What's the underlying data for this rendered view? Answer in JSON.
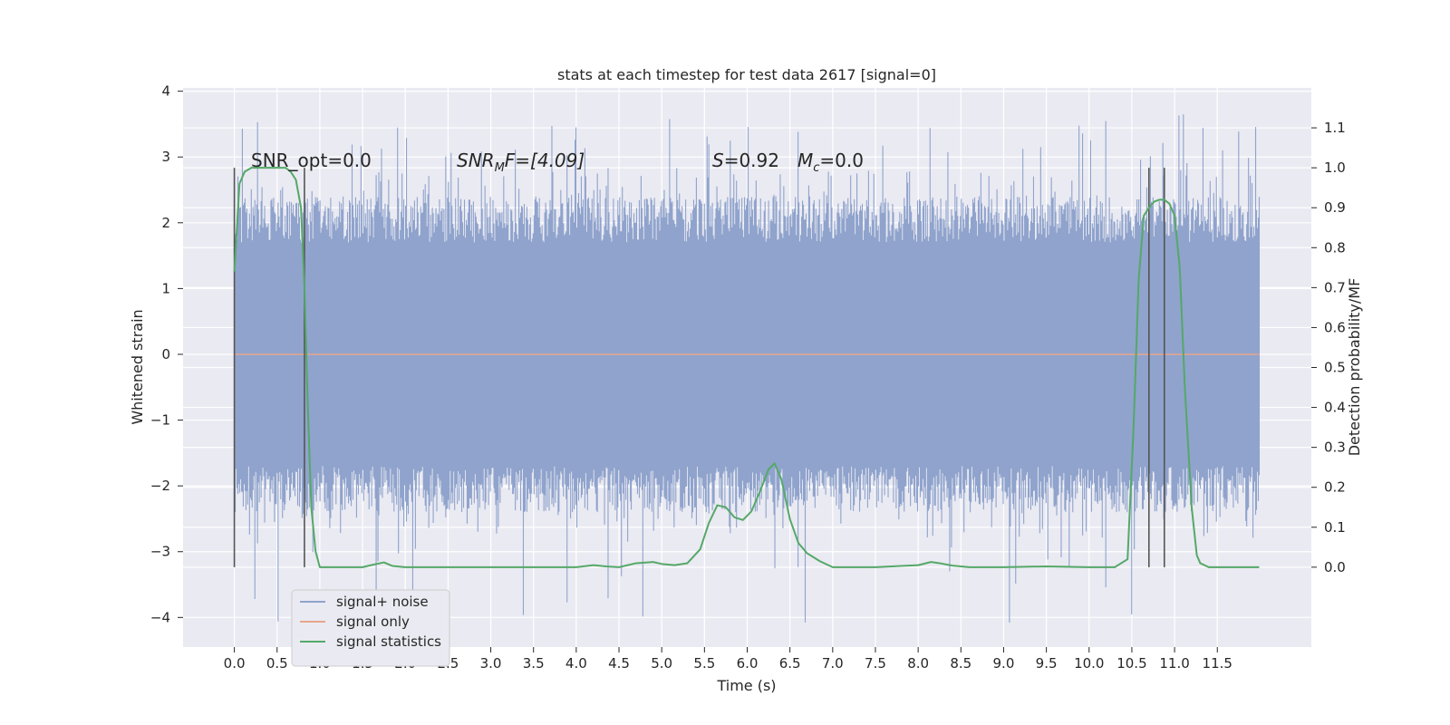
{
  "chart_data": {
    "type": "line",
    "title": "stats at each timestep for test data 2617 [signal=0]",
    "xlabel": "Time (s)",
    "ylabel_left": "Whitened strain",
    "ylabel_right": "Detection probability/MF",
    "xlim": [
      -0.6,
      12.6
    ],
    "ylim_left": [
      -4.45,
      4.05
    ],
    "ylim_right": [
      -0.2,
      1.2
    ],
    "x_ticks": [
      0.0,
      0.5,
      1.0,
      1.5,
      2.0,
      2.5,
      3.0,
      3.5,
      4.0,
      4.5,
      5.0,
      5.5,
      6.0,
      6.5,
      7.0,
      7.5,
      8.0,
      8.5,
      9.0,
      9.5,
      10.0,
      10.5,
      11.0,
      11.5
    ],
    "x_tick_labels": [
      "0.0",
      "0.5",
      "1.0",
      "1.5",
      "2.0",
      "2.5",
      "3.0",
      "3.5",
      "4.0",
      "4.5",
      "5.0",
      "5.5",
      "6.0",
      "6.5",
      "7.0",
      "7.5",
      "8.0",
      "8.5",
      "9.0",
      "9.5",
      "10.0",
      "10.5",
      "11.0",
      "11.5"
    ],
    "y_left_ticks": [
      4,
      3,
      2,
      1,
      0,
      -1,
      -2,
      -3,
      -4
    ],
    "y_left_tick_labels": [
      "4",
      "3",
      "2",
      "1",
      "0",
      "−1",
      "−2",
      "−3",
      "−4"
    ],
    "y_right_ticks": [
      1.1,
      1.0,
      0.9,
      0.8,
      0.7,
      0.6,
      0.5,
      0.4,
      0.3,
      0.2,
      0.1,
      0.0
    ],
    "y_right_tick_labels": [
      "1.1",
      "1.0",
      "0.9",
      "0.8",
      "0.7",
      "0.6",
      "0.5",
      "0.4",
      "0.3",
      "0.2",
      "0.1",
      "0.0"
    ],
    "grid": true,
    "legend_placement": "lower-left",
    "annotations": {
      "snr_opt": "SNR_opt=0.0",
      "snr_mf_main": "SNR",
      "snr_mf_sub": "M",
      "snr_mf_rest": "F=[4.09]",
      "s_main": "S",
      "s_rest": "=0.92",
      "mc_main": "M",
      "mc_sub": "c",
      "mc_rest": "=0.0"
    },
    "vertical_lines": [
      0.0,
      0.82,
      10.7,
      10.88
    ],
    "noise_envelope": {
      "x_range": [
        0.0,
        11.99
      ],
      "typical_upper": 2.0,
      "typical_lower": -2.0,
      "max": 3.65,
      "min": -4.1
    },
    "series": [
      {
        "name": "signal+ noise",
        "color": "#8fa3cc",
        "style": "dense noise band"
      },
      {
        "name": "signal only",
        "color": "#e8a58c",
        "x": [
          0.0,
          11.99
        ],
        "y": [
          0.0,
          0.0
        ]
      },
      {
        "name": "signal statistics",
        "color": "#55a868",
        "axis": "right",
        "x": [
          0.0,
          0.06,
          0.12,
          0.2,
          0.3,
          0.4,
          0.5,
          0.6,
          0.66,
          0.72,
          0.78,
          0.82,
          0.86,
          0.9,
          0.95,
          1.0,
          1.1,
          1.3,
          1.5,
          1.6,
          1.75,
          1.85,
          2.0,
          2.5,
          3.0,
          3.5,
          4.0,
          4.2,
          4.35,
          4.5,
          4.7,
          4.9,
          5.0,
          5.15,
          5.3,
          5.45,
          5.55,
          5.65,
          5.75,
          5.85,
          5.95,
          6.05,
          6.15,
          6.25,
          6.32,
          6.4,
          6.5,
          6.6,
          6.7,
          6.85,
          7.0,
          7.2,
          7.5,
          7.8,
          8.0,
          8.15,
          8.25,
          8.4,
          8.6,
          9.0,
          9.5,
          10.0,
          10.3,
          10.45,
          10.52,
          10.58,
          10.64,
          10.7,
          10.76,
          10.82,
          10.88,
          10.94,
          11.0,
          11.06,
          11.12,
          11.2,
          11.26,
          11.3,
          11.4,
          11.6,
          11.99
        ],
        "y": [
          0.74,
          0.96,
          0.99,
          1.0,
          1.0,
          1.0,
          1.0,
          1.0,
          0.99,
          0.97,
          0.9,
          0.7,
          0.4,
          0.15,
          0.04,
          0.0,
          0.0,
          0.0,
          0.0,
          0.005,
          0.012,
          0.003,
          0.0,
          0.0,
          0.0,
          0.0,
          0.0,
          0.005,
          0.002,
          0.0,
          0.01,
          0.013,
          0.008,
          0.005,
          0.01,
          0.045,
          0.11,
          0.155,
          0.15,
          0.125,
          0.118,
          0.14,
          0.19,
          0.245,
          0.26,
          0.22,
          0.12,
          0.06,
          0.035,
          0.015,
          0.0,
          0.0,
          0.0,
          0.003,
          0.005,
          0.013,
          0.01,
          0.004,
          0.0,
          0.0,
          0.002,
          0.0,
          0.0,
          0.02,
          0.35,
          0.72,
          0.88,
          0.9,
          0.915,
          0.92,
          0.92,
          0.91,
          0.88,
          0.75,
          0.45,
          0.15,
          0.03,
          0.01,
          0.0,
          0.0,
          0.0
        ]
      }
    ]
  }
}
